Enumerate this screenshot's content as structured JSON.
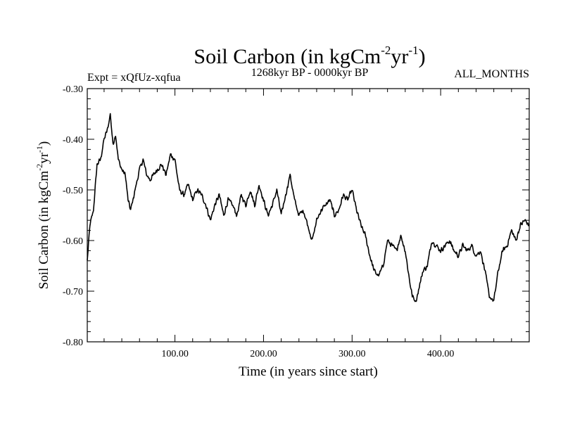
{
  "chart_data": {
    "type": "line",
    "title_main": "Soil Carbon (in kgCm",
    "title_sup1": "-2",
    "title_mid": "yr",
    "title_sup2": "-1",
    "title_end": ")",
    "subtitle_left": "Expt = xQfUz-xqfua",
    "subtitle_center": "1268kyr BP - 0000kyr BP",
    "subtitle_right": "ALL_MONTHS",
    "xlabel": "Time (in years since start)",
    "ylabel_main": "Soil Carbon (in kgCm",
    "ylabel_sup1": "-2",
    "ylabel_mid": "yr",
    "ylabel_sup2": "-1",
    "ylabel_end": ")",
    "xlim": [
      1,
      500
    ],
    "ylim": [
      -0.8,
      -0.3
    ],
    "x_ticks": [
      100,
      200,
      300,
      400
    ],
    "x_tick_labels": [
      "100.00",
      "200.00",
      "300.00",
      "400.00"
    ],
    "y_ticks": [
      -0.3,
      -0.4,
      -0.5,
      -0.6,
      -0.7,
      -0.8
    ],
    "y_tick_labels": [
      "-0.30",
      "-0.40",
      "-0.50",
      "-0.60",
      "-0.70",
      "-0.80"
    ],
    "series": [
      {
        "name": "Soil Carbon",
        "color": "#000000",
        "noise_amplitude": 0.006,
        "x": [
          1,
          4,
          8,
          12,
          16,
          20,
          24,
          27,
          30,
          33,
          36,
          40,
          44,
          47,
          50,
          55,
          60,
          64,
          68,
          72,
          76,
          80,
          85,
          90,
          95,
          100,
          105,
          110,
          115,
          120,
          125,
          130,
          135,
          140,
          145,
          150,
          155,
          160,
          165,
          170,
          175,
          180,
          185,
          190,
          195,
          200,
          205,
          210,
          215,
          220,
          225,
          230,
          235,
          240,
          245,
          250,
          255,
          260,
          265,
          270,
          275,
          280,
          285,
          290,
          295,
          300,
          305,
          310,
          315,
          320,
          325,
          330,
          335,
          340,
          345,
          350,
          355,
          360,
          365,
          368,
          372,
          376,
          380,
          385,
          390,
          395,
          400,
          405,
          410,
          415,
          420,
          425,
          430,
          435,
          440,
          445,
          450,
          455,
          460,
          465,
          470,
          475,
          480,
          485,
          490,
          495,
          500
        ],
        "y": [
          -0.64,
          -0.57,
          -0.54,
          -0.45,
          -0.44,
          -0.4,
          -0.38,
          -0.35,
          -0.41,
          -0.39,
          -0.44,
          -0.46,
          -0.47,
          -0.52,
          -0.54,
          -0.5,
          -0.46,
          -0.44,
          -0.47,
          -0.48,
          -0.47,
          -0.46,
          -0.45,
          -0.47,
          -0.43,
          -0.44,
          -0.5,
          -0.51,
          -0.49,
          -0.52,
          -0.5,
          -0.51,
          -0.53,
          -0.56,
          -0.53,
          -0.51,
          -0.55,
          -0.52,
          -0.53,
          -0.55,
          -0.51,
          -0.53,
          -0.5,
          -0.53,
          -0.49,
          -0.52,
          -0.55,
          -0.53,
          -0.5,
          -0.55,
          -0.51,
          -0.47,
          -0.52,
          -0.55,
          -0.54,
          -0.57,
          -0.6,
          -0.56,
          -0.54,
          -0.53,
          -0.52,
          -0.55,
          -0.54,
          -0.51,
          -0.52,
          -0.5,
          -0.54,
          -0.57,
          -0.59,
          -0.63,
          -0.66,
          -0.67,
          -0.65,
          -0.6,
          -0.61,
          -0.62,
          -0.59,
          -0.62,
          -0.68,
          -0.71,
          -0.72,
          -0.69,
          -0.66,
          -0.65,
          -0.6,
          -0.61,
          -0.62,
          -0.61,
          -0.6,
          -0.62,
          -0.63,
          -0.61,
          -0.62,
          -0.61,
          -0.63,
          -0.62,
          -0.66,
          -0.71,
          -0.72,
          -0.66,
          -0.62,
          -0.61,
          -0.58,
          -0.6,
          -0.57,
          -0.56,
          -0.57
        ]
      }
    ]
  }
}
